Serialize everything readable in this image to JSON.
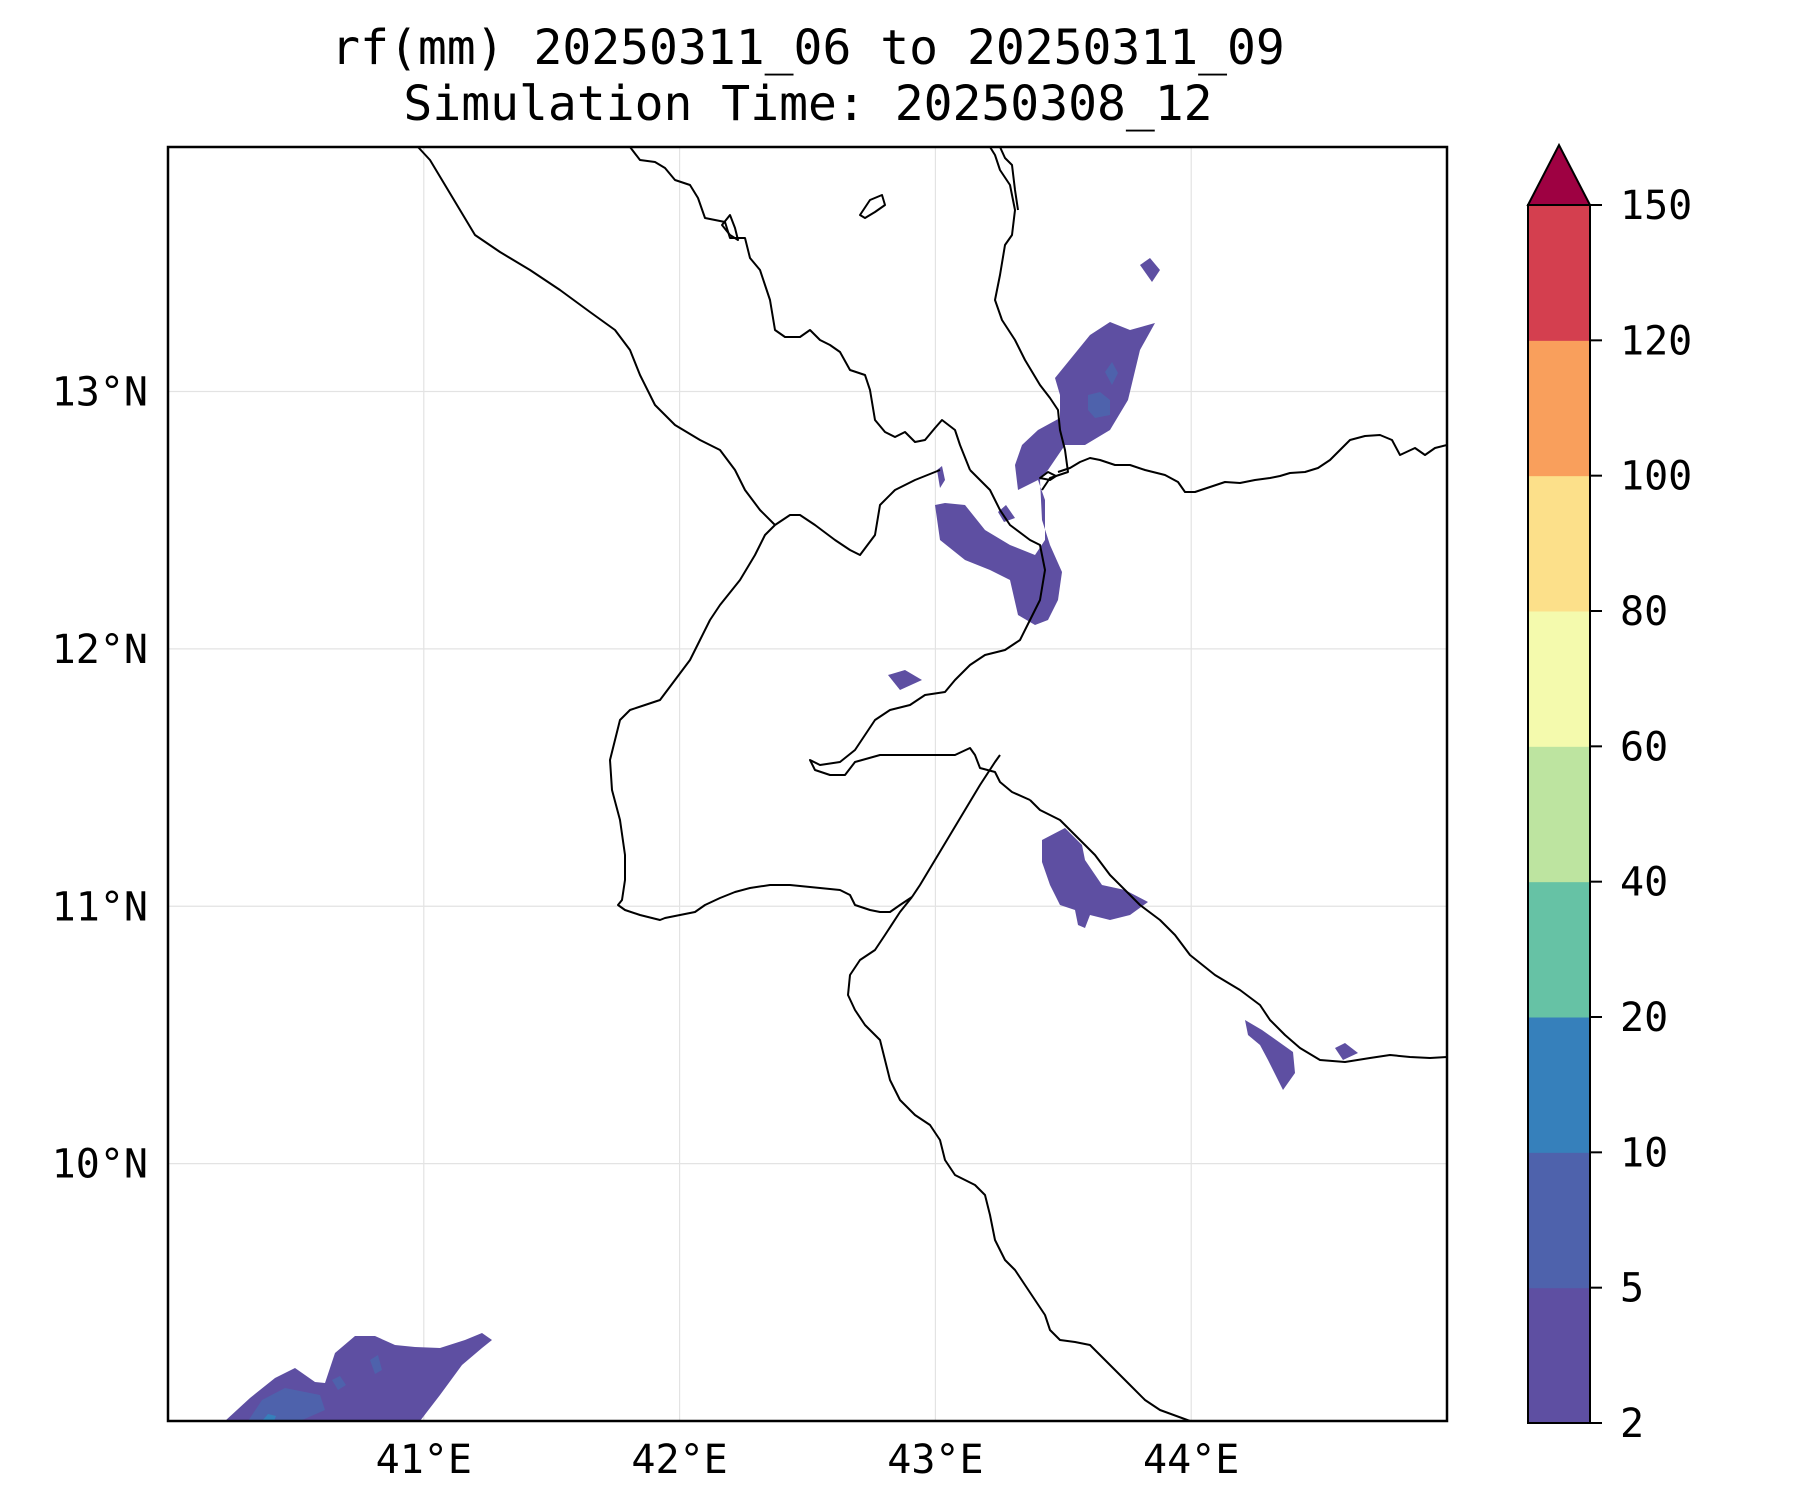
{
  "title": {
    "line1": "rf(mm) 20250311_06 to 20250311_09",
    "line2": "Simulation Time: 20250308_12"
  },
  "map": {
    "lon_range": [
      40.0,
      45.0
    ],
    "lat_range": [
      9.0,
      13.95
    ],
    "lon_ticks": [
      {
        "value": 41,
        "label": "41°E"
      },
      {
        "value": 42,
        "label": "42°E"
      },
      {
        "value": 43,
        "label": "43°E"
      },
      {
        "value": 44,
        "label": "44°E"
      }
    ],
    "lat_ticks": [
      {
        "value": 10,
        "label": "10°N"
      },
      {
        "value": 11,
        "label": "11°N"
      },
      {
        "value": 12,
        "label": "12°N"
      },
      {
        "value": 13,
        "label": "13°N"
      }
    ],
    "gridlines": true
  },
  "colorbar": {
    "levels": [
      2,
      5,
      10,
      20,
      40,
      60,
      80,
      100,
      120,
      150
    ],
    "labels": [
      "2",
      "5",
      "10",
      "20",
      "40",
      "60",
      "80",
      "100",
      "120",
      "150"
    ],
    "colors": [
      "#5e4fa2",
      "#4e62ac",
      "#3680bb",
      "#66c2a5",
      "#bde4a0",
      "#f4faad",
      "#fce08a",
      "#f99f5c",
      "#d43f4f",
      "#9e0142"
    ],
    "extend": "max"
  }
}
